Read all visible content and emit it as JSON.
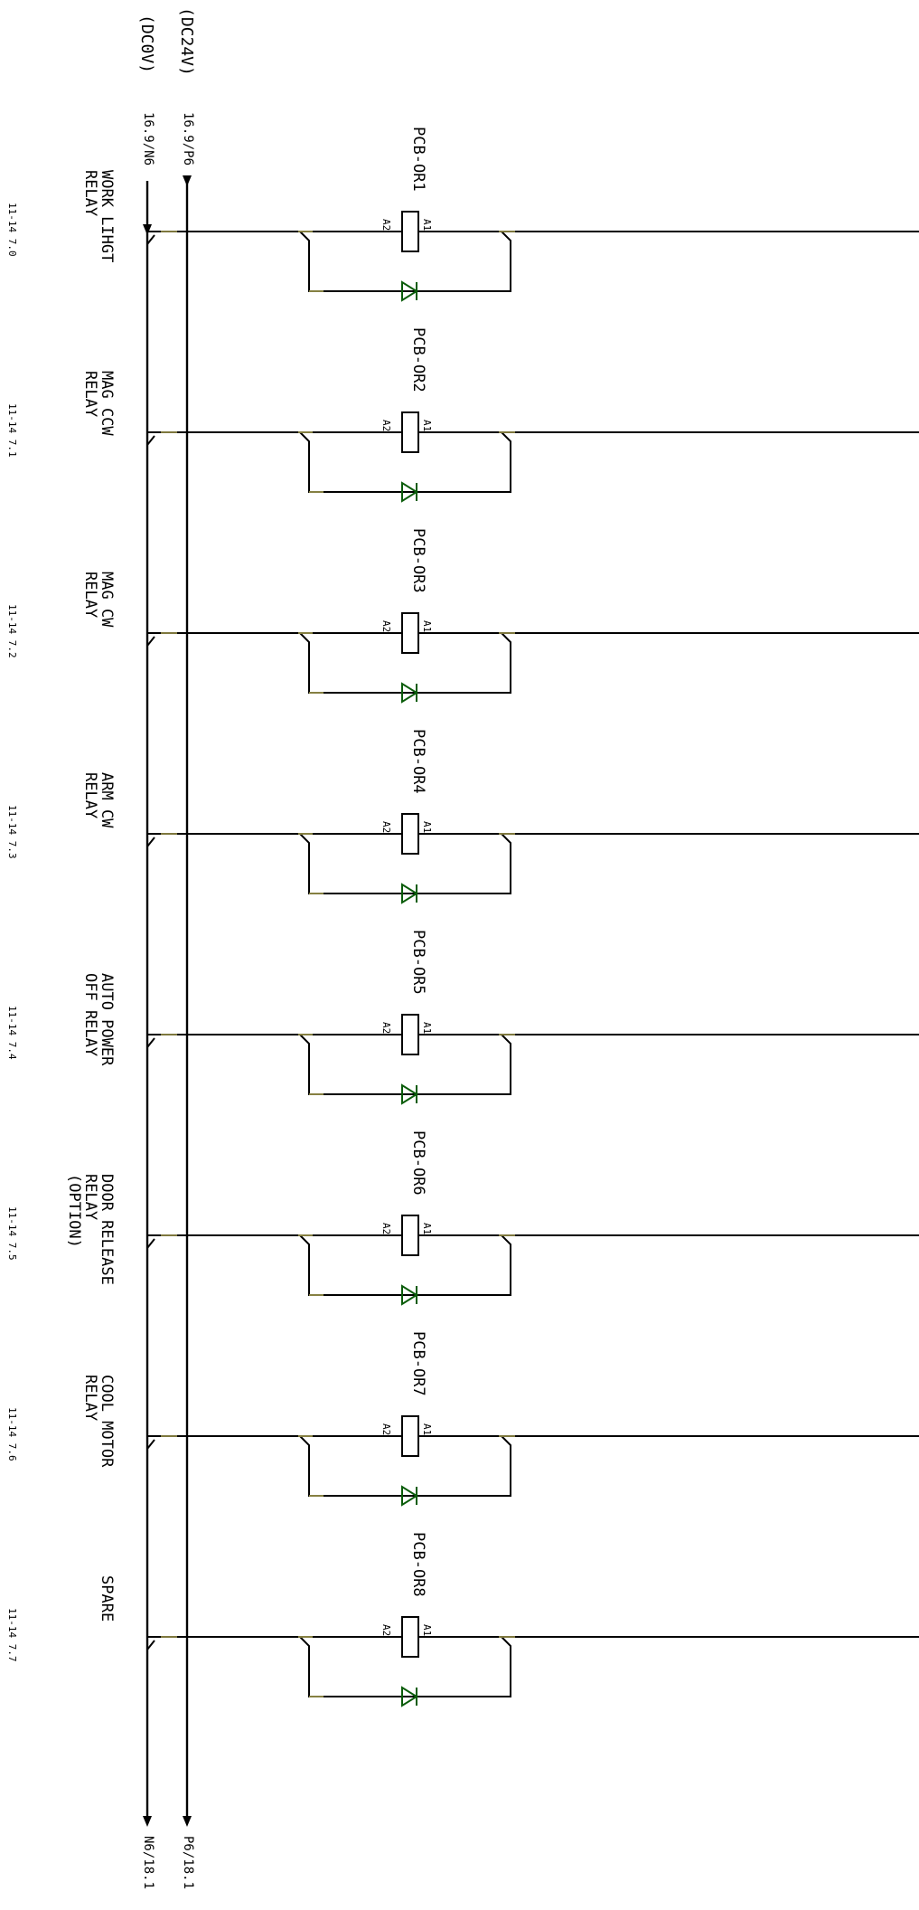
{
  "bus": {
    "positive_label": "(DC24V)",
    "negative_label": "(DC0V)",
    "positive_in_ref": "16.9/P6",
    "negative_in_ref": "16.9/N6",
    "positive_out_ref": "P6/18.1",
    "negative_out_ref": "N6/18.1"
  },
  "relays": [
    {
      "coil": "PCB-OR1",
      "pin_a1": "A1",
      "pin_a2": "A2",
      "function": [
        "WORK LIHGT",
        "RELAY"
      ],
      "cross_ref": "11-14 7.0"
    },
    {
      "coil": "PCB-OR2",
      "pin_a1": "A1",
      "pin_a2": "A2",
      "function": [
        "MAG CCW",
        "RELAY"
      ],
      "cross_ref": "11-14 7.1"
    },
    {
      "coil": "PCB-OR3",
      "pin_a1": "A1",
      "pin_a2": "A2",
      "function": [
        "MAG CW",
        "RELAY"
      ],
      "cross_ref": "11-14 7.2"
    },
    {
      "coil": "PCB-OR4",
      "pin_a1": "A1",
      "pin_a2": "A2",
      "function": [
        "ARM CW",
        "RELAY"
      ],
      "cross_ref": "11-14 7.3"
    },
    {
      "coil": "PCB-OR5",
      "pin_a1": "A1",
      "pin_a2": "A2",
      "function": [
        "AUTO POWER",
        "OFF RELAY"
      ],
      "cross_ref": "11-14 7.4"
    },
    {
      "coil": "PCB-OR6",
      "pin_a1": "A1",
      "pin_a2": "A2",
      "function": [
        "DOOR RELEASE",
        "RELAY",
        "(OPTION)"
      ],
      "cross_ref": "11-14 7.5"
    },
    {
      "coil": "PCB-OR7",
      "pin_a1": "A1",
      "pin_a2": "A2",
      "function": [
        "COOL MOTOR",
        "RELAY"
      ],
      "cross_ref": "11-14 7.6"
    },
    {
      "coil": "PCB-OR8",
      "pin_a1": "A1",
      "pin_a2": "A2",
      "function": [
        "SPARE"
      ],
      "cross_ref": "11-14 7.7"
    }
  ]
}
